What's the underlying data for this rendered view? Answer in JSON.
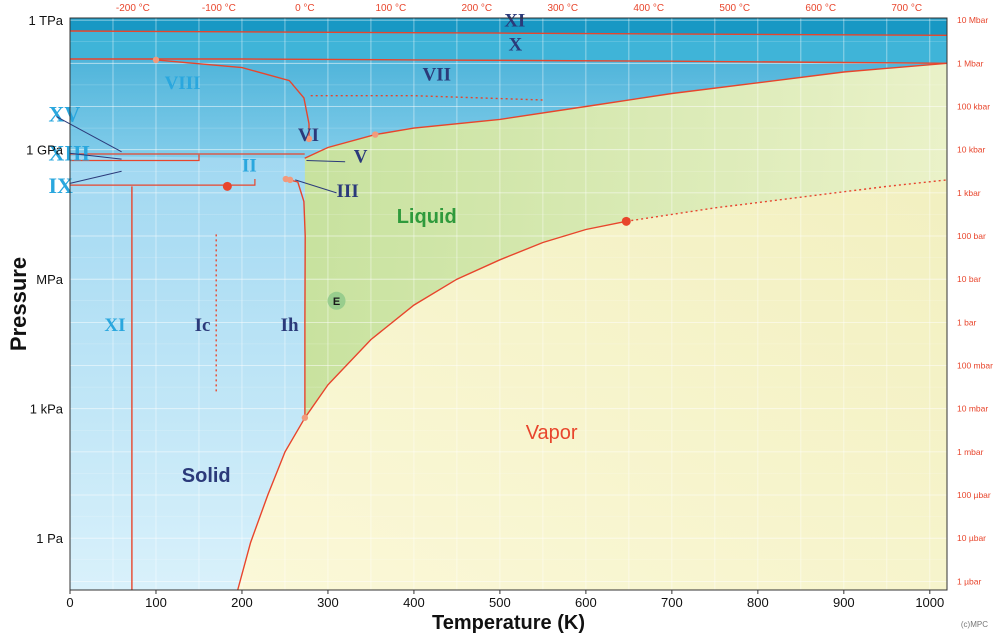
{
  "chart_data": {
    "type": "line",
    "title": "",
    "xlabel": "Temperature (K)",
    "ylabel": "Pressure",
    "xlim": [
      0,
      1020
    ],
    "ylim_log10_pa": [
      -1.2,
      12.05
    ],
    "log_scale_y": true,
    "grid": true,
    "x_ticks": [
      0,
      100,
      200,
      300,
      400,
      500,
      600,
      700,
      800,
      900,
      1000
    ],
    "x_tick_labels": [
      "0",
      "100",
      "200",
      "300",
      "400",
      "500",
      "600",
      "700",
      "800",
      "900",
      "1000"
    ],
    "y_ticks_left": [
      {
        "label": "1 Pa",
        "log10_pa": 0
      },
      {
        "label": "1 kPa",
        "log10_pa": 3
      },
      {
        "label": "MPa",
        "log10_pa": 6
      },
      {
        "label": "1 GPa",
        "log10_pa": 9
      },
      {
        "label": "1 TPa",
        "log10_pa": 12
      }
    ],
    "top_ticks_celsius": [
      {
        "label": "-200 °C",
        "kelvin": 73.15
      },
      {
        "label": "-100 °C",
        "kelvin": 173.15
      },
      {
        "label": "0 °C",
        "kelvin": 273.15
      },
      {
        "label": "100 °C",
        "kelvin": 373.15
      },
      {
        "label": "200 °C",
        "kelvin": 473.15
      },
      {
        "label": "300 °C",
        "kelvin": 573.15
      },
      {
        "label": "400 °C",
        "kelvin": 673.15
      },
      {
        "label": "500 °C",
        "kelvin": 773.15
      },
      {
        "label": "600 °C",
        "kelvin": 873.15
      },
      {
        "label": "700 °C",
        "kelvin": 973.15
      }
    ],
    "right_ticks_bar": [
      {
        "label": "10 Mbar",
        "log10_pa": 12
      },
      {
        "label": "1 Mbar",
        "log10_pa": 11
      },
      {
        "label": "100 kbar",
        "log10_pa": 10
      },
      {
        "label": "10 kbar",
        "log10_pa": 9
      },
      {
        "label": "1 kbar",
        "log10_pa": 8
      },
      {
        "label": "100 bar",
        "log10_pa": 7
      },
      {
        "label": "10 bar",
        "log10_pa": 6
      },
      {
        "label": "1 bar",
        "log10_pa": 5
      },
      {
        "label": "100 mbar",
        "log10_pa": 4
      },
      {
        "label": "10 mbar",
        "log10_pa": 3
      },
      {
        "label": "1 mbar",
        "log10_pa": 2
      },
      {
        "label": "100 µbar",
        "log10_pa": 1
      },
      {
        "label": "10 µbar",
        "log10_pa": 0
      },
      {
        "label": "1 µbar",
        "log10_pa": -1
      }
    ],
    "boundaries": [
      {
        "name": "sublimation",
        "points": [
          [
            195,
            -1.2
          ],
          [
            210,
            -0.1
          ],
          [
            230,
            1
          ],
          [
            250,
            2
          ],
          [
            273.16,
            2.79
          ]
        ]
      },
      {
        "name": "vaporization",
        "points": [
          [
            273.16,
            2.79
          ],
          [
            300,
            3.55
          ],
          [
            350,
            4.6
          ],
          [
            400,
            5.4
          ],
          [
            450,
            6
          ],
          [
            500,
            6.45
          ],
          [
            550,
            6.85
          ],
          [
            600,
            7.15
          ],
          [
            647,
            7.34
          ]
        ]
      },
      {
        "name": "supercritical",
        "style": "dotted",
        "points": [
          [
            647,
            7.34
          ],
          [
            750,
            7.65
          ],
          [
            850,
            7.9
          ],
          [
            950,
            8.15
          ],
          [
            1020,
            8.3
          ]
        ]
      },
      {
        "name": "melting-Ih",
        "points": [
          [
            273.16,
            2.79
          ],
          [
            273.2,
            5
          ],
          [
            273.5,
            7
          ],
          [
            272,
            7.8
          ],
          [
            265,
            8.25
          ],
          [
            251,
            8.32
          ]
        ]
      },
      {
        "name": "melting-high",
        "points": [
          [
            273,
            8.8
          ],
          [
            300,
            9.05
          ],
          [
            355,
            9.35
          ],
          [
            400,
            9.5
          ],
          [
            500,
            9.7
          ],
          [
            600,
            10
          ],
          [
            700,
            10.3
          ],
          [
            800,
            10.55
          ],
          [
            900,
            10.8
          ],
          [
            1020,
            11
          ]
        ]
      },
      {
        "name": "VII-upper",
        "points": [
          [
            0,
            11.1
          ],
          [
            200,
            11.1
          ],
          [
            400,
            11.08
          ],
          [
            700,
            11.05
          ],
          [
            900,
            11.02
          ],
          [
            1020,
            11
          ]
        ]
      },
      {
        "name": "VII-VIII",
        "points": [
          [
            100,
            11.08
          ],
          [
            200,
            10.9
          ],
          [
            255,
            10.6
          ],
          [
            272,
            10.2
          ],
          [
            278,
            9.6
          ],
          [
            278,
            9.25
          ]
        ]
      },
      {
        "name": "VII-VIII-dotted",
        "style": "dotted",
        "points": [
          [
            280,
            10.25
          ],
          [
            400,
            10.25
          ],
          [
            550,
            10.15
          ]
        ]
      },
      {
        "name": "X-XI",
        "points": [
          [
            0,
            11.75
          ],
          [
            500,
            11.7
          ],
          [
            1020,
            11.65
          ]
        ]
      },
      {
        "name": "vertical-XI",
        "points": [
          [
            72,
            -1.2
          ],
          [
            72,
            8.15
          ]
        ]
      },
      {
        "name": "Ic-dotted",
        "style": "dotted",
        "points": [
          [
            170,
            3.4
          ],
          [
            170,
            7.1
          ]
        ]
      }
    ],
    "points": [
      {
        "name": "critical-point",
        "x": 647,
        "y": 7.34,
        "label": ""
      },
      {
        "name": "triple-point",
        "x": 273.16,
        "y": 2.79,
        "label": ""
      },
      {
        "name": "VII-point",
        "x": 100,
        "y": 11.08,
        "label": ""
      },
      {
        "name": "melting-VII-point",
        "x": 355,
        "y": 9.35,
        "label": ""
      },
      {
        "name": "VI-VII-point",
        "x": 278,
        "y": 9.25,
        "label": ""
      },
      {
        "name": "IX-point",
        "x": 183,
        "y": 8.15,
        "label": ""
      },
      {
        "name": "ice-V-point",
        "x": 256,
        "y": 8.3,
        "label": ""
      },
      {
        "name": "ice-III-point",
        "x": 251,
        "y": 8.32,
        "label": ""
      },
      {
        "name": "E-point",
        "x": 310,
        "y": 5.5,
        "label": "E"
      }
    ],
    "annotations": [
      {
        "text": "XI",
        "x": 505,
        "y": 11.85,
        "color": "dark"
      },
      {
        "text": "X",
        "x": 510,
        "y": 11.3,
        "color": "dark"
      },
      {
        "text": "VII",
        "x": 410,
        "y": 10.6,
        "color": "dark"
      },
      {
        "text": "VIII",
        "x": 110,
        "y": 10.4,
        "color": "light"
      },
      {
        "text": "XV",
        "x": -25,
        "y": 9.65,
        "color": "light"
      },
      {
        "text": "XIII",
        "x": -25,
        "y": 8.75,
        "color": "light"
      },
      {
        "text": "IX",
        "x": -25,
        "y": 8.0,
        "color": "light"
      },
      {
        "text": "VI",
        "x": 265,
        "y": 9.2,
        "color": "dark"
      },
      {
        "text": "V",
        "x": 330,
        "y": 8.7,
        "color": "dark"
      },
      {
        "text": "II",
        "x": 200,
        "y": 8.5,
        "color": "light"
      },
      {
        "text": "III",
        "x": 310,
        "y": 7.9,
        "color": "dark"
      },
      {
        "text": "Liquid",
        "x": 380,
        "y": 7.3,
        "color": "green"
      },
      {
        "text": "XI",
        "x": 40,
        "y": 4.8,
        "color": "light"
      },
      {
        "text": "Ic",
        "x": 145,
        "y": 4.8,
        "color": "dark"
      },
      {
        "text": "Ih",
        "x": 245,
        "y": 4.8,
        "color": "dark"
      },
      {
        "text": "Solid",
        "x": 130,
        "y": 1.3,
        "color": "dark"
      },
      {
        "text": "Vapor",
        "x": 530,
        "y": 2.3,
        "color": "red"
      }
    ],
    "credit": "(c)MPC"
  },
  "colors": {
    "red": "#e8452c",
    "dark_label": "#2b3a7a",
    "light_label": "#2aa7de",
    "liquid_label": "#2f9a3c",
    "solid_fill": "#bfe6f6",
    "liquid_fill": "#d7e9a6",
    "vapor_fill": "#f5f3c9",
    "highp_fill": "#3fb4d8",
    "top_fill": "#1898c4"
  }
}
